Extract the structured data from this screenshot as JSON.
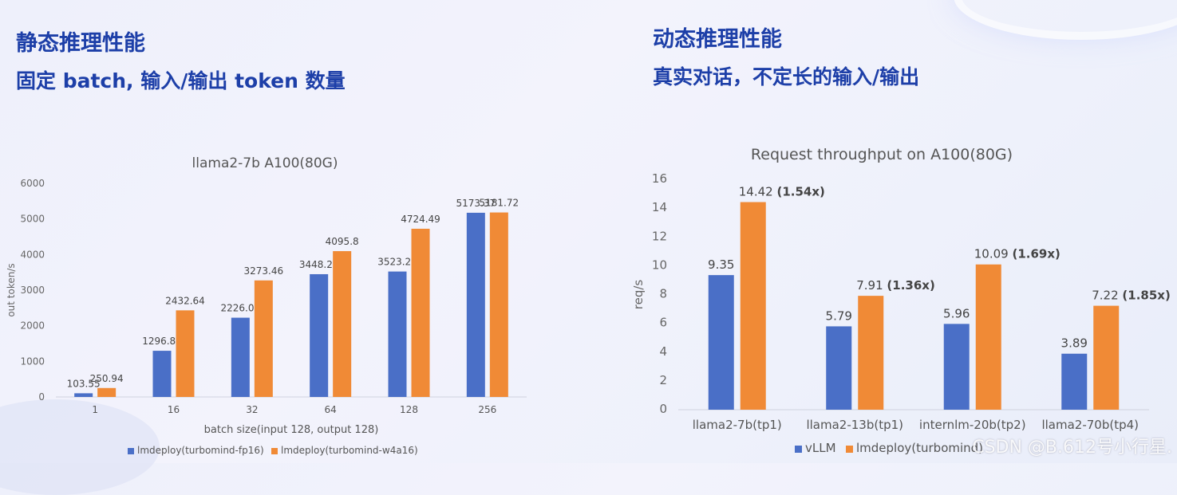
{
  "left_panel": {
    "title": "静态推理性能",
    "subtitle": "固定 batch, 输入/输出 token 数量"
  },
  "right_panel": {
    "title": "动态推理性能",
    "subtitle": "真实对话，不定长的输入/输出"
  },
  "watermark": "CSDN @B.612号小行星.",
  "colors": {
    "blue": "#4a6fc7",
    "orange": "#f08a36"
  },
  "chart_data": [
    {
      "type": "bar",
      "title": "llama2-7b A100(80G)",
      "xlabel": "batch size(input 128, output 128)",
      "ylabel": "out token/s",
      "ylim": [
        0,
        6000
      ],
      "yticks": [
        0,
        1000,
        2000,
        3000,
        4000,
        5000,
        6000
      ],
      "categories": [
        "1",
        "16",
        "32",
        "64",
        "128",
        "256"
      ],
      "series": [
        {
          "name": "lmdeploy(turbomind-fp16)",
          "color": "#4a6fc7",
          "values": [
            103.55,
            1296.88,
            2226.09,
            3448.22,
            3523.22,
            5173.37
          ],
          "labels": [
            "103.55",
            "1296.88",
            "2226.09",
            "3448.22",
            "3523.22",
            "5173.37"
          ]
        },
        {
          "name": "lmdeploy(turbomind-w4a16)",
          "color": "#f08a36",
          "values": [
            250.94,
            2432.64,
            3273.46,
            4095.8,
            4724.49,
            5181.72
          ],
          "labels": [
            "250.94",
            "2432.64",
            "3273.46",
            "4095.8",
            "4724.49",
            "5181.72"
          ]
        }
      ],
      "grid": false,
      "legend": "bottom"
    },
    {
      "type": "bar",
      "title": "Request throughput on A100(80G)",
      "xlabel": "",
      "ylabel": "req/s",
      "ylim": [
        0,
        16
      ],
      "yticks": [
        0,
        2,
        4,
        6,
        8,
        10,
        12,
        14,
        16
      ],
      "categories": [
        "llama2-7b(tp1)",
        "llama2-13b(tp1)",
        "internlm-20b(tp2)",
        "llama2-70b(tp4)"
      ],
      "series": [
        {
          "name": "vLLM",
          "color": "#4a6fc7",
          "values": [
            9.35,
            5.79,
            5.96,
            3.89
          ],
          "labels": [
            "9.35",
            "5.79",
            "5.96",
            "3.89"
          ]
        },
        {
          "name": "lmdeploy(turbomind)",
          "color": "#f08a36",
          "values": [
            14.42,
            7.91,
            10.09,
            7.22
          ],
          "labels": [
            "14.42",
            "7.91",
            "10.09",
            "7.22"
          ],
          "speedups": [
            "(1.54x)",
            "(1.36x)",
            "(1.69x)",
            "(1.85x)"
          ]
        }
      ],
      "grid": false,
      "legend": "bottom"
    }
  ]
}
